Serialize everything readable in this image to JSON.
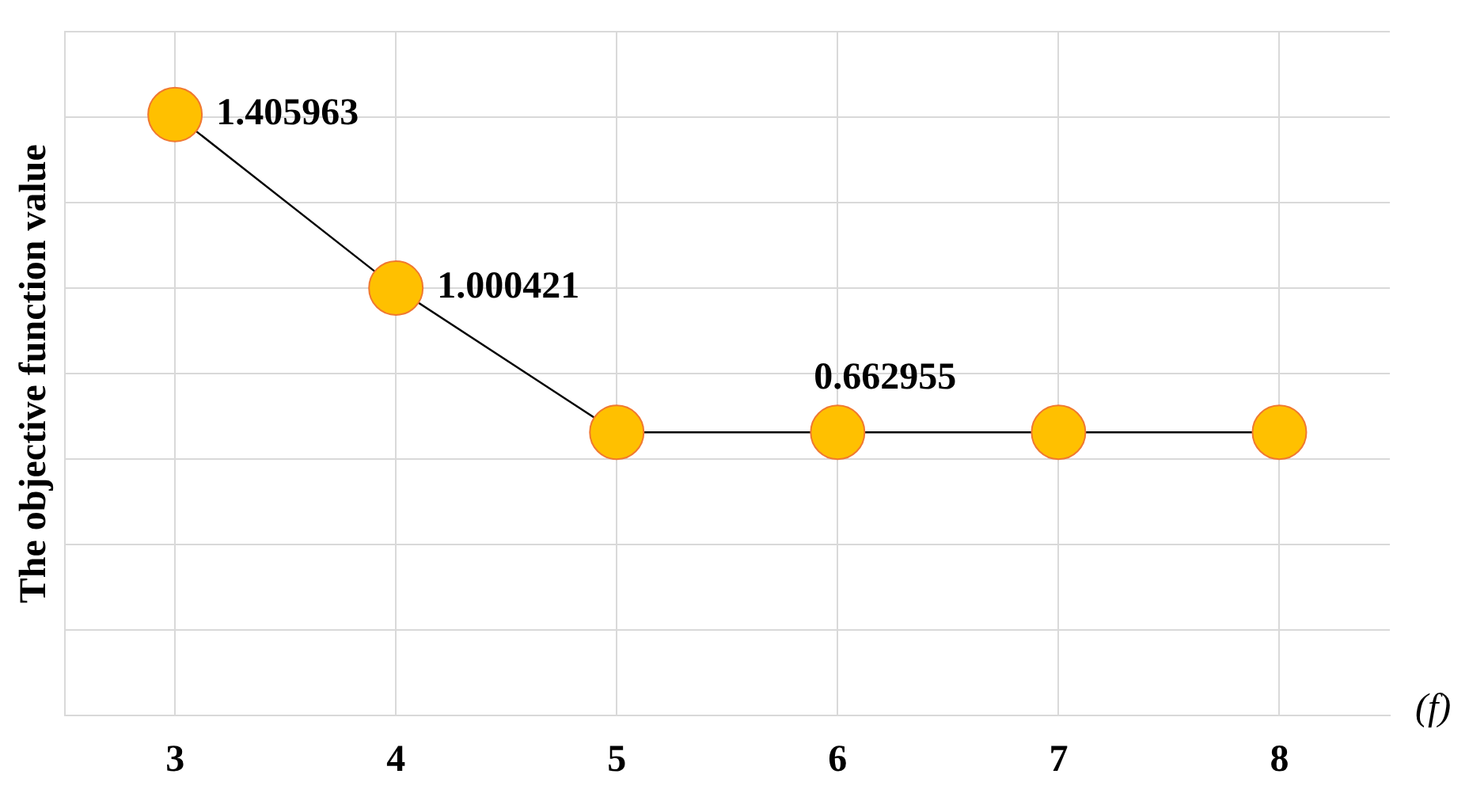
{
  "chart_data": {
    "type": "line",
    "ylabel": "The objective function value",
    "xlabel": "(f)",
    "categories": [
      "3",
      "4",
      "5",
      "6",
      "7",
      "8"
    ],
    "series": [
      {
        "color": "#ffc000",
        "values": [
          1.405963,
          1.000421,
          0.662955,
          0.662955,
          0.662955,
          0.662955
        ],
        "value_labels": [
          "1.405963",
          "1.000421",
          null,
          "0.662955",
          null,
          null
        ]
      }
    ],
    "marker": "circle",
    "grid": true,
    "legend": false,
    "tick_labels": "x"
  }
}
